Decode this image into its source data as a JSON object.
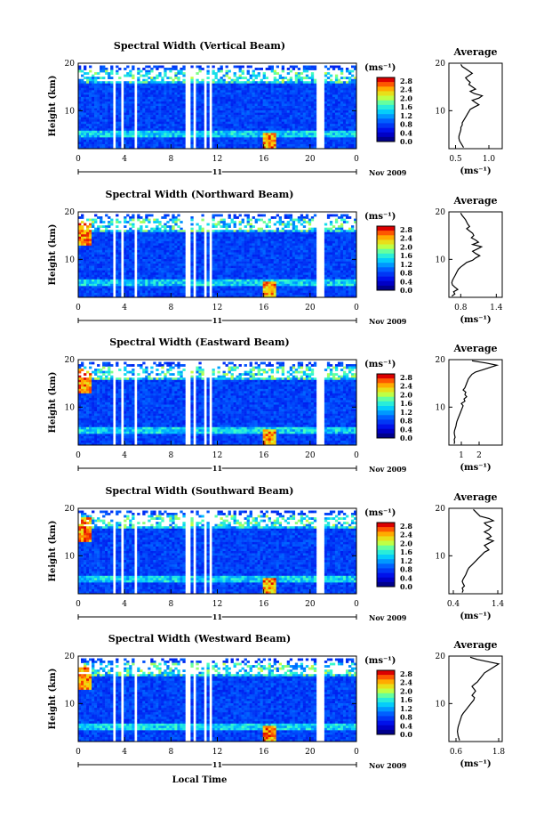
{
  "date_label": "Nov 2009",
  "day_label": "11",
  "xaxis_title": "Local Time",
  "ylabel": "Height (km)",
  "average_title": "Average",
  "unit_label": "(ms⁻¹)",
  "chart_data": [
    {
      "type": "heatmap",
      "title": "Spectral Width (Vertical Beam)",
      "x_ticks": [
        "0",
        "4",
        "8",
        "12",
        "16",
        "20",
        "0"
      ],
      "y_ticks": [
        "20",
        "10"
      ],
      "colorbar_ticks": [
        "2.8",
        "2.4",
        "2.0",
        "1.6",
        "1.2",
        "0.8",
        "0.4",
        "0.0"
      ],
      "avg_ticks": [
        "0.5",
        "1.0"
      ],
      "avg_range": [
        0.4,
        1.2
      ],
      "avg_profile": [
        0.62,
        0.6,
        0.58,
        0.56,
        0.55,
        0.55,
        0.56,
        0.57,
        0.58,
        0.58,
        0.6,
        0.6,
        0.62,
        0.64,
        0.66,
        0.68,
        0.7,
        0.72,
        0.78,
        0.85,
        0.8,
        0.75,
        0.85,
        0.9,
        0.78,
        0.72,
        0.8,
        0.75,
        0.7,
        0.72,
        0.68,
        0.65,
        0.7,
        0.75,
        0.7,
        0.65,
        0.6,
        0.58
      ]
    },
    {
      "type": "heatmap",
      "title": "Spectral Width (Northward Beam)",
      "x_ticks": [
        "0",
        "4",
        "8",
        "12",
        "16",
        "20",
        "0"
      ],
      "y_ticks": [
        "20",
        "10"
      ],
      "colorbar_ticks": [
        "2.8",
        "2.4",
        "2.0",
        "1.6",
        "1.2",
        "0.8",
        "0.4",
        "0.0"
      ],
      "avg_ticks": [
        "0.8",
        "1.4"
      ],
      "avg_range": [
        0.6,
        1.5
      ],
      "avg_profile": [
        0.65,
        0.7,
        0.68,
        0.75,
        0.7,
        0.66,
        0.65,
        0.66,
        0.68,
        0.7,
        0.72,
        0.74,
        0.76,
        0.8,
        0.85,
        0.9,
        1.0,
        1.05,
        1.12,
        1.05,
        1.0,
        1.08,
        1.15,
        1.0,
        1.1,
        1.05,
        0.98,
        1.02,
        1.0,
        0.95,
        0.9,
        0.95,
        0.92,
        0.9,
        0.88,
        0.85,
        0.82,
        0.8
      ]
    },
    {
      "type": "heatmap",
      "title": "Spectral Width (Eastward Beam)",
      "x_ticks": [
        "0",
        "4",
        "8",
        "12",
        "16",
        "20",
        "0"
      ],
      "y_ticks": [
        "20",
        "10"
      ],
      "colorbar_ticks": [
        "2.8",
        "2.4",
        "2.0",
        "1.6",
        "1.2",
        "0.8",
        "0.4",
        "0.0"
      ],
      "avg_ticks": [
        "1",
        "2"
      ],
      "avg_range": [
        0.3,
        3.3
      ],
      "avg_profile": [
        0.6,
        0.62,
        0.6,
        0.65,
        0.62,
        0.6,
        0.62,
        0.66,
        0.7,
        0.72,
        0.75,
        0.8,
        0.85,
        0.9,
        0.95,
        1.0,
        1.05,
        1.1,
        1.0,
        1.2,
        1.15,
        1.3,
        1.2,
        1.25,
        1.1,
        1.2,
        1.25,
        1.3,
        1.35,
        1.4,
        1.5,
        1.6,
        1.8,
        2.2,
        2.6,
        3.0,
        2.4,
        1.6
      ]
    },
    {
      "type": "heatmap",
      "title": "Spectral Width (Southward Beam)",
      "x_ticks": [
        "0",
        "4",
        "8",
        "12",
        "16",
        "20",
        "0"
      ],
      "y_ticks": [
        "20",
        "10"
      ],
      "colorbar_ticks": [
        "2.8",
        "2.4",
        "2.0",
        "1.6",
        "1.2",
        "0.8",
        "0.4",
        "0.0"
      ],
      "avg_ticks": [
        "0.4",
        "1.4"
      ],
      "avg_range": [
        0.3,
        1.5
      ],
      "avg_profile": [
        0.6,
        0.62,
        0.6,
        0.65,
        0.62,
        0.6,
        0.62,
        0.65,
        0.68,
        0.7,
        0.72,
        0.75,
        0.8,
        0.85,
        0.9,
        0.95,
        1.0,
        1.05,
        1.1,
        1.2,
        1.15,
        1.1,
        1.2,
        1.3,
        1.15,
        1.25,
        1.2,
        1.1,
        1.2,
        1.25,
        1.15,
        1.1,
        1.3,
        1.2,
        1.0,
        0.95,
        0.9,
        0.85
      ]
    },
    {
      "type": "heatmap",
      "title": "Spectral Width (Westward Beam)",
      "x_ticks": [
        "0",
        "4",
        "8",
        "12",
        "16",
        "20",
        "0"
      ],
      "y_ticks": [
        "20",
        "10"
      ],
      "colorbar_ticks": [
        "2.8",
        "2.4",
        "2.0",
        "1.6",
        "1.2",
        "0.8",
        "0.4",
        "0.0"
      ],
      "avg_ticks": [
        "0.6",
        "1.8"
      ],
      "avg_range": [
        0.4,
        1.9
      ],
      "avg_profile": [
        0.7,
        0.68,
        0.66,
        0.65,
        0.64,
        0.65,
        0.66,
        0.68,
        0.7,
        0.72,
        0.74,
        0.76,
        0.8,
        0.85,
        0.9,
        0.95,
        1.0,
        1.05,
        1.1,
        1.12,
        1.05,
        1.1,
        1.15,
        1.1,
        1.05,
        1.12,
        1.2,
        1.25,
        1.3,
        1.35,
        1.4,
        1.5,
        1.6,
        1.7,
        1.8,
        1.5,
        1.2,
        1.0
      ]
    }
  ]
}
